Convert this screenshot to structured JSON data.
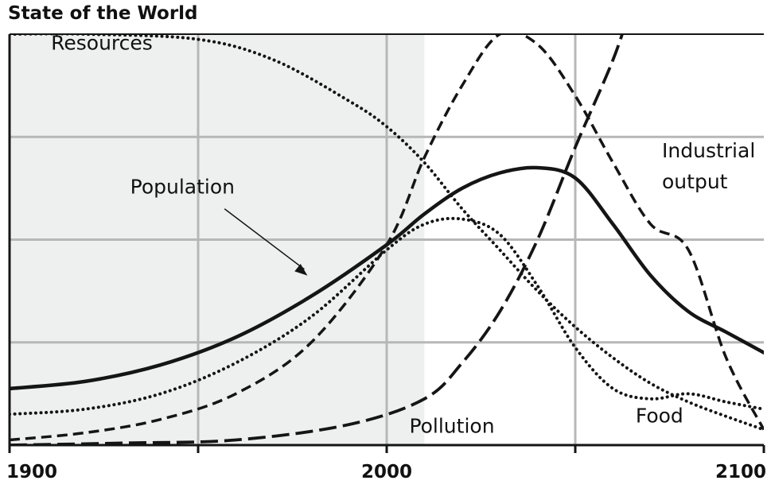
{
  "chart_data": {
    "type": "line",
    "title": "State of the World",
    "xlabel": "",
    "ylabel": "",
    "xlim": [
      1900,
      2100
    ],
    "ylim": [
      0,
      4
    ],
    "x_ticks": [
      {
        "value": 1900,
        "label": "1900"
      },
      {
        "value": 2000,
        "label": "2000"
      },
      {
        "value": 2100,
        "label": "2100"
      }
    ],
    "grid": true,
    "historical_shading": [
      1900,
      2010
    ],
    "series": [
      {
        "name": "Resources",
        "style": "dotted",
        "points": [
          [
            1900,
            4.0
          ],
          [
            1920,
            4.0
          ],
          [
            1950,
            3.95
          ],
          [
            1970,
            3.75
          ],
          [
            1990,
            3.35
          ],
          [
            2000,
            3.1
          ],
          [
            2010,
            2.75
          ],
          [
            2020,
            2.3
          ],
          [
            2030,
            1.9
          ],
          [
            2040,
            1.5
          ],
          [
            2050,
            1.15
          ],
          [
            2060,
            0.85
          ],
          [
            2070,
            0.6
          ],
          [
            2080,
            0.42
          ],
          [
            2090,
            0.28
          ],
          [
            2100,
            0.15
          ]
        ]
      },
      {
        "name": "Population",
        "style": "solid",
        "points": [
          [
            1900,
            0.55
          ],
          [
            1920,
            0.62
          ],
          [
            1940,
            0.78
          ],
          [
            1960,
            1.05
          ],
          [
            1980,
            1.45
          ],
          [
            2000,
            1.95
          ],
          [
            2010,
            2.25
          ],
          [
            2020,
            2.5
          ],
          [
            2030,
            2.65
          ],
          [
            2040,
            2.7
          ],
          [
            2050,
            2.6
          ],
          [
            2060,
            2.15
          ],
          [
            2070,
            1.65
          ],
          [
            2080,
            1.3
          ],
          [
            2090,
            1.1
          ],
          [
            2100,
            0.9
          ]
        ]
      },
      {
        "name": "Food",
        "style": "dotted",
        "points": [
          [
            1900,
            0.3
          ],
          [
            1920,
            0.35
          ],
          [
            1940,
            0.5
          ],
          [
            1960,
            0.8
          ],
          [
            1980,
            1.25
          ],
          [
            2000,
            1.9
          ],
          [
            2010,
            2.15
          ],
          [
            2020,
            2.2
          ],
          [
            2030,
            2.05
          ],
          [
            2040,
            1.55
          ],
          [
            2050,
            0.95
          ],
          [
            2060,
            0.55
          ],
          [
            2070,
            0.45
          ],
          [
            2080,
            0.5
          ],
          [
            2090,
            0.42
          ],
          [
            2100,
            0.35
          ]
        ]
      },
      {
        "name": "Industrial output",
        "style": "dashed",
        "points": [
          [
            1900,
            0.05
          ],
          [
            1920,
            0.12
          ],
          [
            1940,
            0.25
          ],
          [
            1960,
            0.5
          ],
          [
            1980,
            1.0
          ],
          [
            2000,
            1.95
          ],
          [
            2010,
            2.8
          ],
          [
            2020,
            3.5
          ],
          [
            2030,
            4.0
          ],
          [
            2040,
            3.9
          ],
          [
            2050,
            3.4
          ],
          [
            2060,
            2.75
          ],
          [
            2070,
            2.15
          ],
          [
            2080,
            1.9
          ],
          [
            2090,
            0.85
          ],
          [
            2100,
            0.15
          ]
        ]
      },
      {
        "name": "Pollution",
        "style": "longdash",
        "points": [
          [
            1900,
            0.0
          ],
          [
            1930,
            0.02
          ],
          [
            1960,
            0.05
          ],
          [
            1990,
            0.2
          ],
          [
            2010,
            0.45
          ],
          [
            2020,
            0.8
          ],
          [
            2030,
            1.3
          ],
          [
            2040,
            2.0
          ],
          [
            2050,
            2.9
          ],
          [
            2060,
            3.75
          ],
          [
            2065,
            4.3
          ]
        ]
      }
    ],
    "annotations": [
      {
        "text": "Resources",
        "x": 1911,
        "y": 3.85
      },
      {
        "text": "Population",
        "x": 1932,
        "y": 2.45
      },
      {
        "text": "Industrial",
        "x": 2073,
        "y": 2.8
      },
      {
        "text": "output",
        "x": 2073,
        "y": 2.5
      },
      {
        "text": "Pollution",
        "x": 2006,
        "y": 0.12
      },
      {
        "text": "Food",
        "x": 2066,
        "y": 0.22
      }
    ],
    "population_arrow": {
      "from": [
        1957,
        2.3
      ],
      "to": [
        1979,
        1.65
      ]
    }
  }
}
